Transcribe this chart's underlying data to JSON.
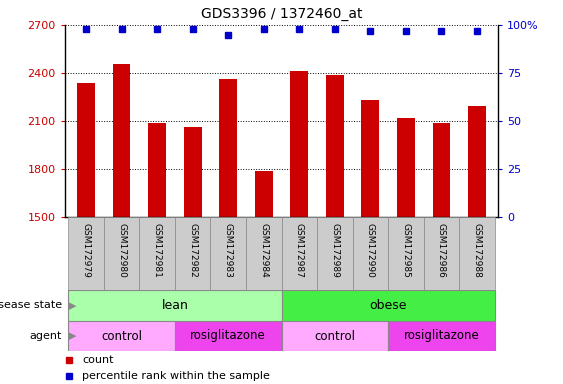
{
  "title": "GDS3396 / 1372460_at",
  "samples": [
    "GSM172979",
    "GSM172980",
    "GSM172981",
    "GSM172982",
    "GSM172983",
    "GSM172984",
    "GSM172987",
    "GSM172989",
    "GSM172990",
    "GSM172985",
    "GSM172986",
    "GSM172988"
  ],
  "counts": [
    2340,
    2455,
    2090,
    2065,
    2360,
    1790,
    2410,
    2390,
    2230,
    2120,
    2090,
    2195
  ],
  "percentile_ranks": [
    98,
    98,
    98,
    98,
    95,
    98,
    98,
    98,
    97,
    97,
    97,
    97
  ],
  "ylim_left": [
    1500,
    2700
  ],
  "ylim_right": [
    0,
    100
  ],
  "yticks_left": [
    1500,
    1800,
    2100,
    2400,
    2700
  ],
  "yticks_right": [
    0,
    25,
    50,
    75,
    100
  ],
  "bar_color": "#CC0000",
  "dot_color": "#0000CC",
  "disease_state_groups": [
    {
      "label": "lean",
      "start": 0,
      "end": 6,
      "color": "#AAFFAA"
    },
    {
      "label": "obese",
      "start": 6,
      "end": 12,
      "color": "#44EE44"
    }
  ],
  "agent_groups": [
    {
      "label": "control",
      "start": 0,
      "end": 3,
      "color": "#FFAAFF"
    },
    {
      "label": "rosiglitazone",
      "start": 3,
      "end": 6,
      "color": "#EE44EE"
    },
    {
      "label": "control",
      "start": 6,
      "end": 9,
      "color": "#FFAAFF"
    },
    {
      "label": "rosiglitazone",
      "start": 9,
      "end": 12,
      "color": "#EE44EE"
    }
  ],
  "legend_count_color": "#CC0000",
  "legend_rank_color": "#0000CC",
  "label_bg_color": "#CCCCCC",
  "label_border_color": "#888888"
}
